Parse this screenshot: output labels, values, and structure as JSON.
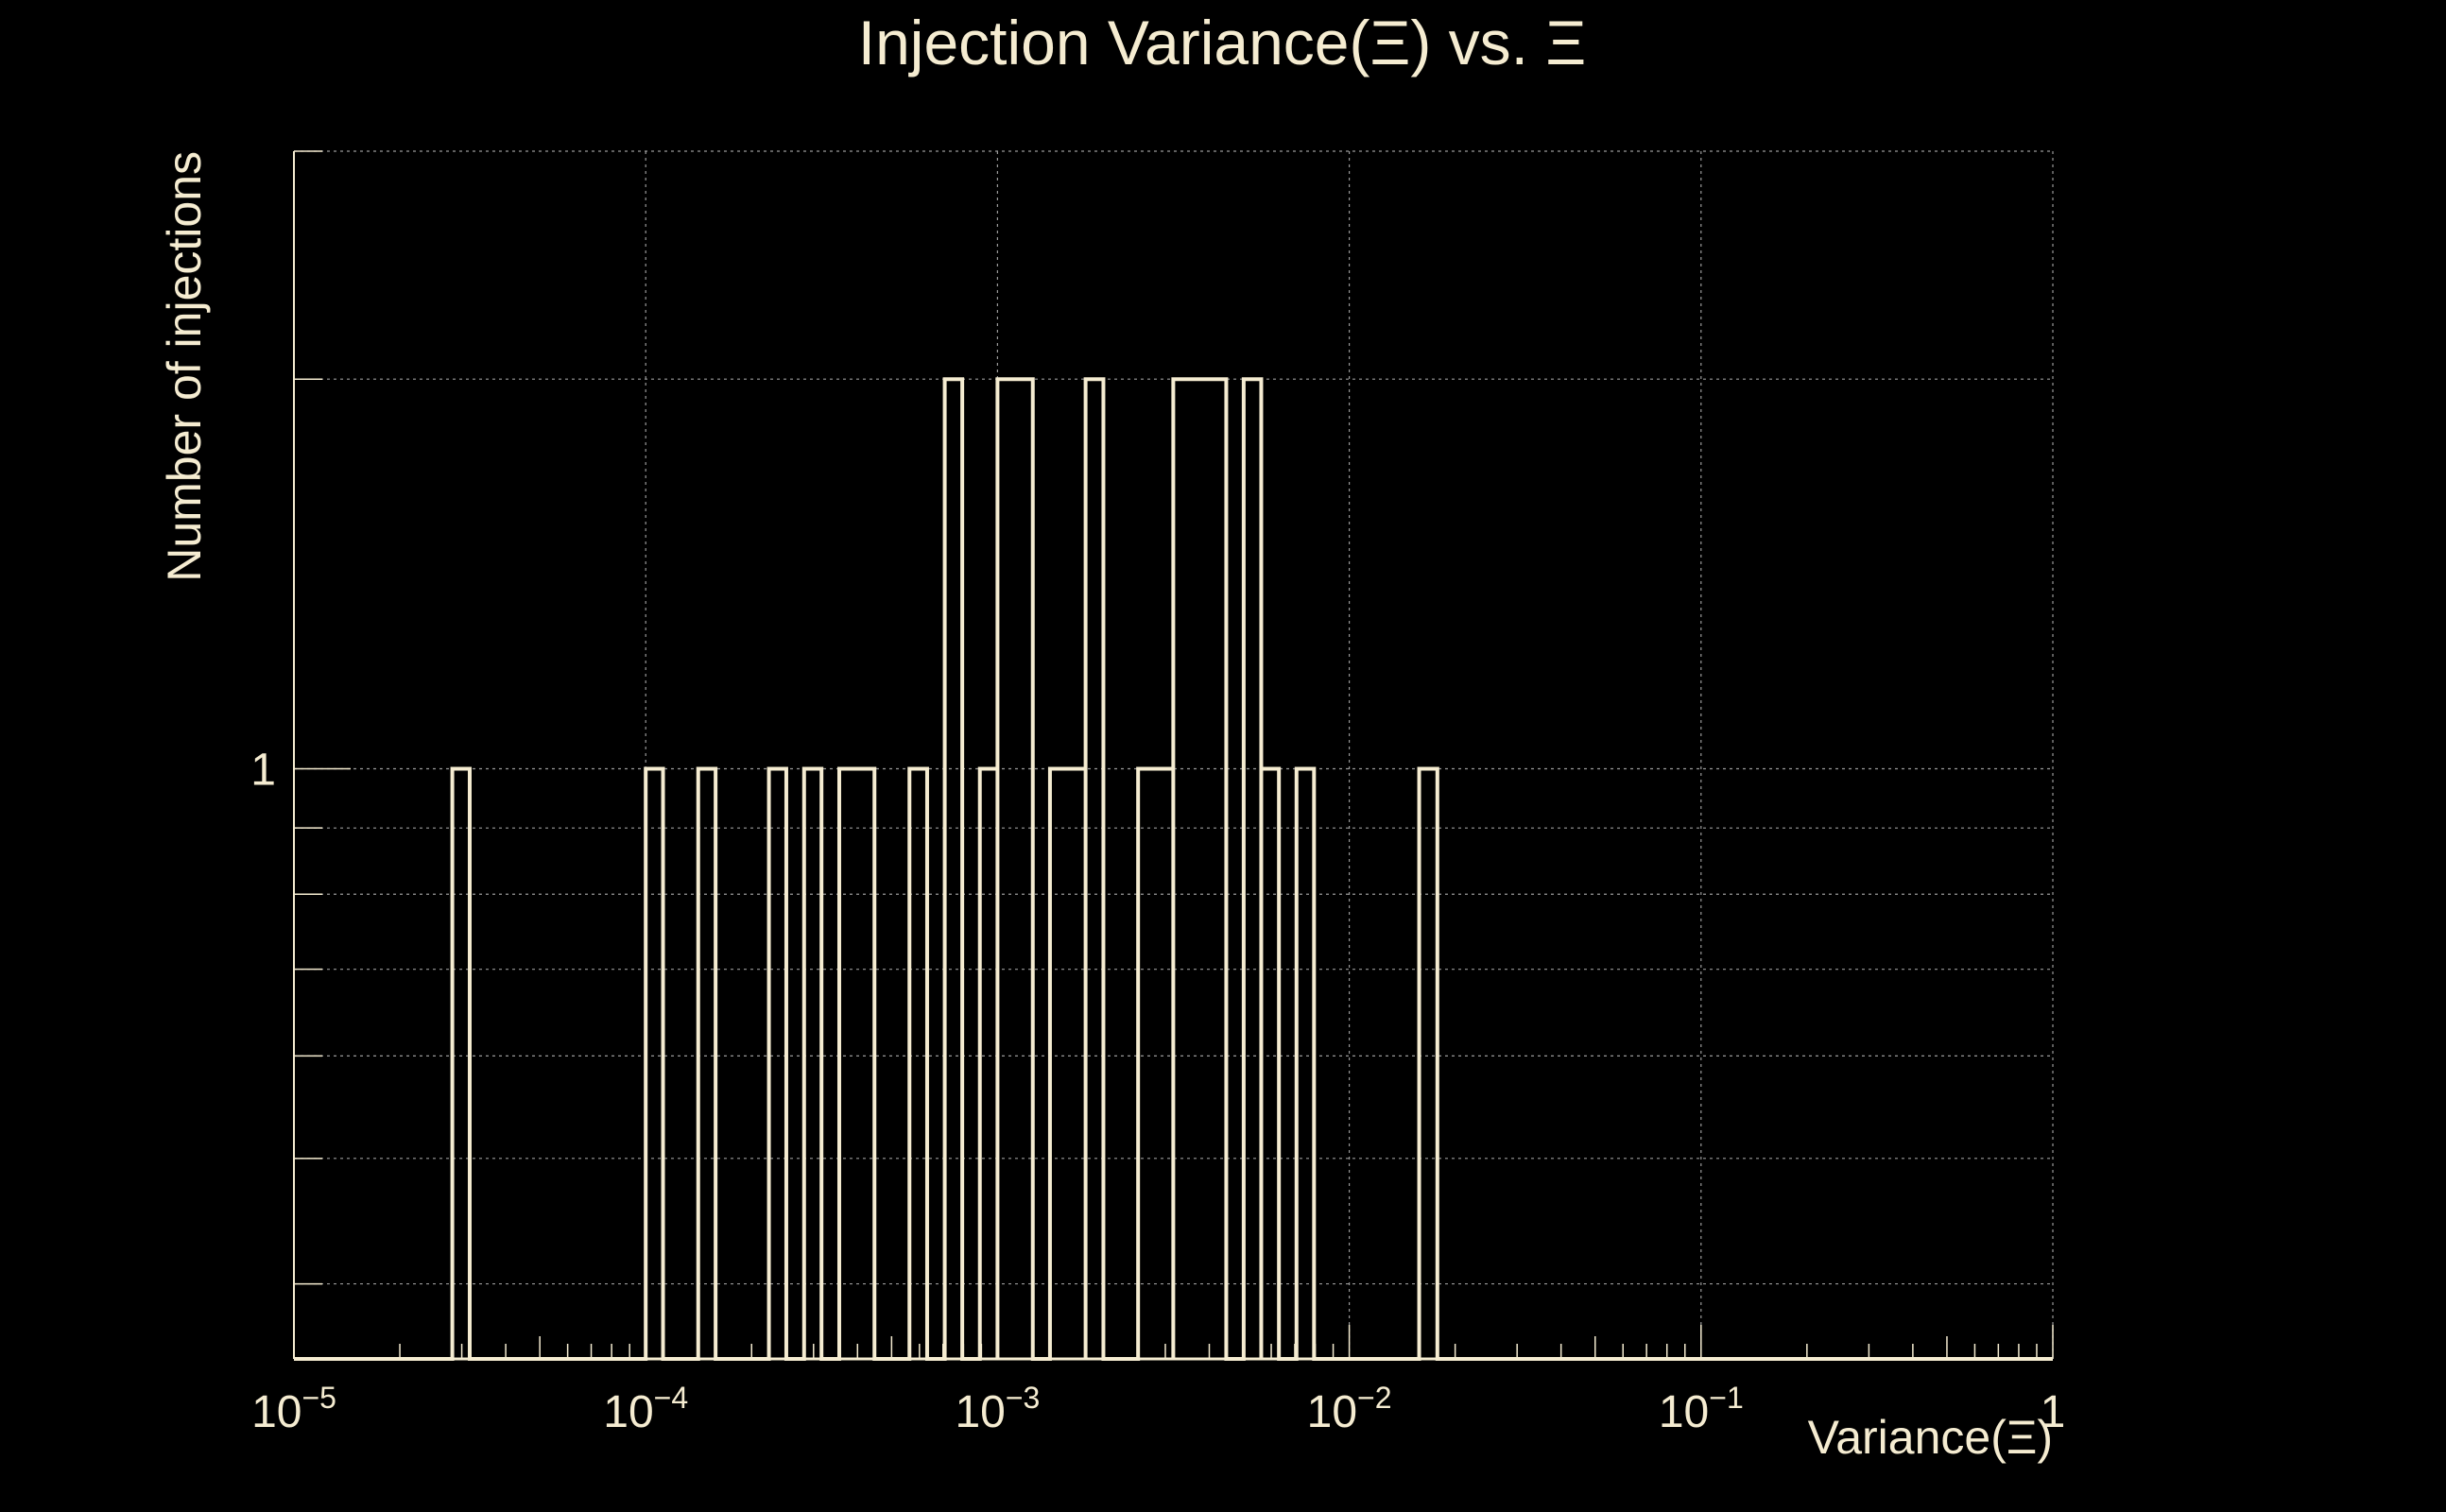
{
  "colors": {
    "background": "#000000",
    "foreground": "#f5ecd1",
    "grid": "#9a9a9a"
  },
  "chart_data": {
    "type": "bar",
    "title": "Injection Variance(Ξ) vs. Ξ",
    "xlabel": "Variance(Ξ)",
    "ylabel": "Number of injections",
    "x_scale": "log",
    "y_scale": "log",
    "xlim": [
      1e-05,
      1
    ],
    "ylim": [
      0.35,
      3
    ],
    "grid": true,
    "legend": "none",
    "x_ticks": [
      {
        "value": 1e-05,
        "base": "10",
        "exp": "−5"
      },
      {
        "value": 0.0001,
        "base": "10",
        "exp": "−4"
      },
      {
        "value": 0.001,
        "base": "10",
        "exp": "−3"
      },
      {
        "value": 0.01,
        "base": "10",
        "exp": "−2"
      },
      {
        "value": 0.1,
        "base": "10",
        "exp": "−1"
      },
      {
        "value": 1,
        "base": "1",
        "exp": ""
      }
    ],
    "y_ticks": [
      {
        "value": 1,
        "label": "1"
      }
    ],
    "bins": [
      {
        "lo": 2.82e-05,
        "hi": 3.16e-05,
        "count": 1
      },
      {
        "lo": 0.0001,
        "hi": 0.000112,
        "count": 1
      },
      {
        "lo": 0.000141,
        "hi": 0.000158,
        "count": 1
      },
      {
        "lo": 0.000224,
        "hi": 0.000251,
        "count": 1
      },
      {
        "lo": 0.000282,
        "hi": 0.000316,
        "count": 1
      },
      {
        "lo": 0.000355,
        "hi": 0.000447,
        "count": 1
      },
      {
        "lo": 0.000562,
        "hi": 0.000631,
        "count": 1
      },
      {
        "lo": 0.000708,
        "hi": 0.000794,
        "count": 2
      },
      {
        "lo": 0.000891,
        "hi": 0.001,
        "count": 1
      },
      {
        "lo": 0.001,
        "hi": 0.00126,
        "count": 2
      },
      {
        "lo": 0.00141,
        "hi": 0.00178,
        "count": 1
      },
      {
        "lo": 0.00178,
        "hi": 0.002,
        "count": 2
      },
      {
        "lo": 0.00251,
        "hi": 0.00316,
        "count": 1
      },
      {
        "lo": 0.00316,
        "hi": 0.00447,
        "count": 2
      },
      {
        "lo": 0.00501,
        "hi": 0.00562,
        "count": 2
      },
      {
        "lo": 0.00562,
        "hi": 0.00631,
        "count": 1
      },
      {
        "lo": 0.00708,
        "hi": 0.00794,
        "count": 1
      },
      {
        "lo": 0.0158,
        "hi": 0.0178,
        "count": 1
      }
    ]
  }
}
